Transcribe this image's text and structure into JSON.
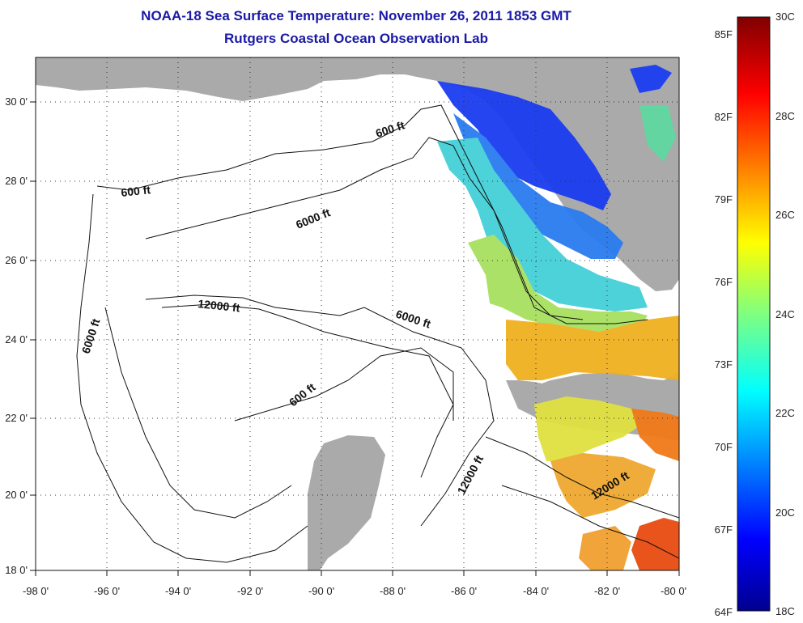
{
  "title": {
    "line1": "NOAA-18 Sea Surface Temperature:  November 26, 2011 1853 GMT",
    "line2": "Rutgers Coastal Ocean Observation Lab"
  },
  "axes": {
    "x_ticks": [
      "-98 0'",
      "-96 0'",
      "-94 0'",
      "-92 0'",
      "-90 0'",
      "-88 0'",
      "-86 0'",
      "-84 0'",
      "-82 0'",
      "-80 0'"
    ],
    "y_ticks": [
      "30 0'",
      "28 0'",
      "26 0'",
      "24 0'",
      "22 0'",
      "20 0'",
      "18 0'"
    ],
    "lon_range": [
      -98,
      -80
    ],
    "lat_range": [
      18,
      31
    ]
  },
  "contour_labels": [
    "600 ft",
    "600 ft",
    "6000 ft",
    "6000 ft",
    "12000 ft",
    "6000 ft",
    "600 ft",
    "12000 ft",
    "12000 ft"
  ],
  "colorbar": {
    "f_labels": [
      "85F",
      "82F",
      "79F",
      "76F",
      "73F",
      "70F",
      "67F",
      "64F"
    ],
    "c_labels": [
      "30C",
      "28C",
      "26C",
      "24C",
      "22C",
      "20C",
      "18C"
    ],
    "range_c": [
      18,
      30
    ]
  },
  "colors": {
    "land": "#aaaaaa",
    "title": "#1a1aa6",
    "water_nodata": "#ffffff"
  }
}
